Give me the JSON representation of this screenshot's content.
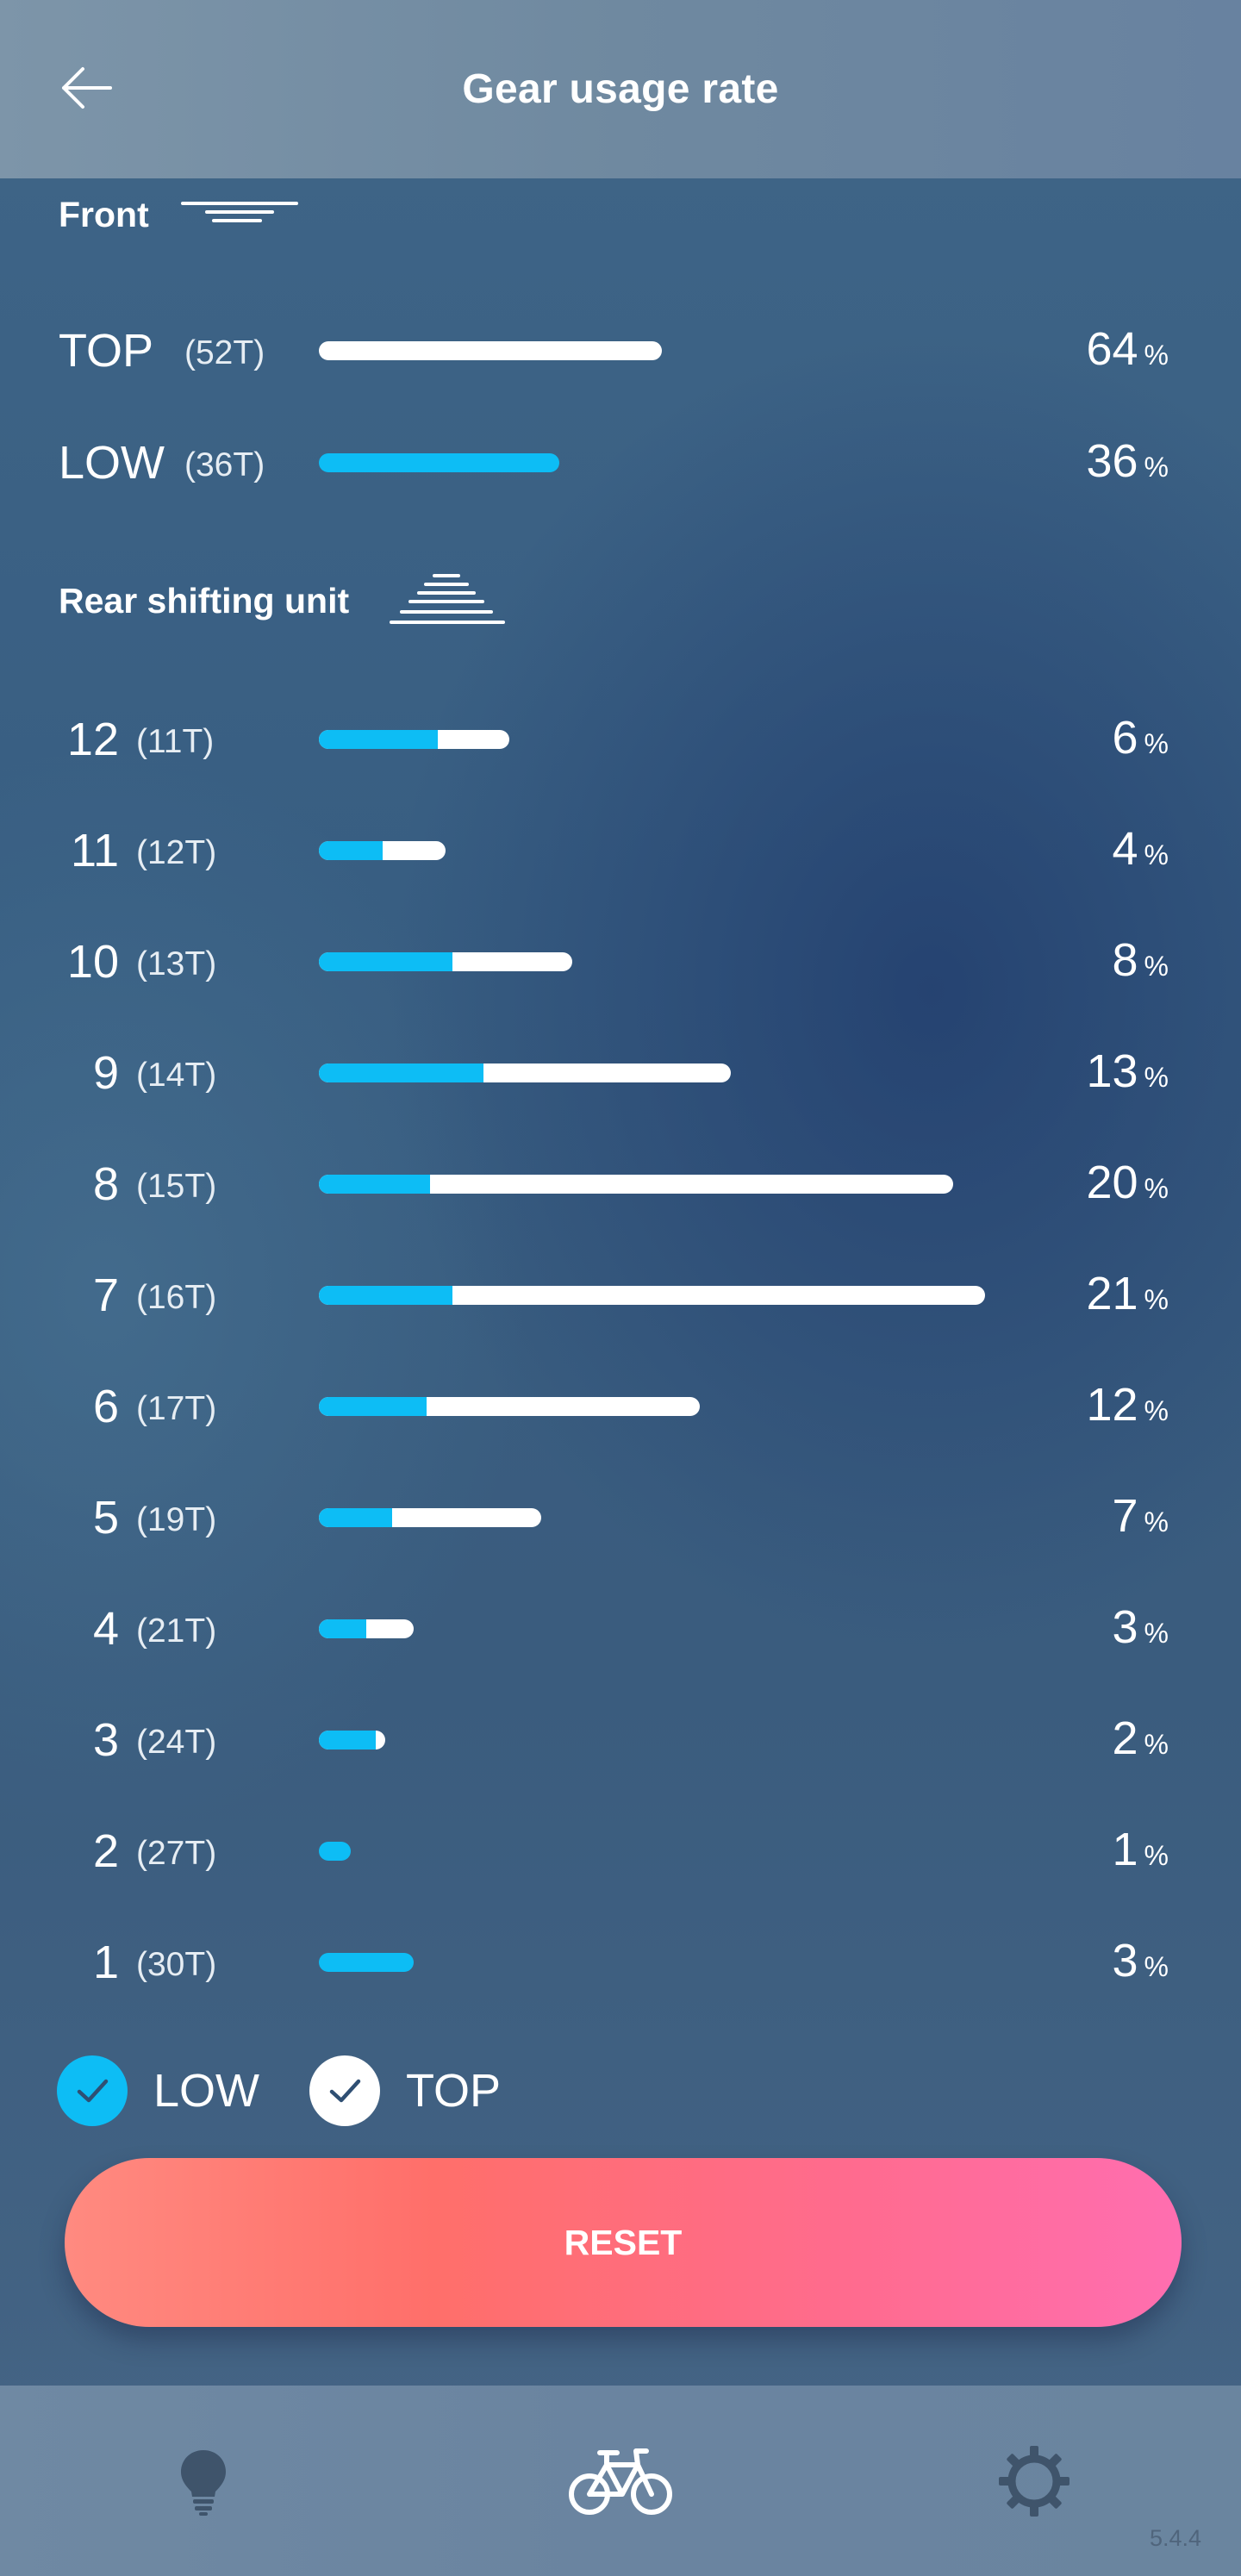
{
  "header": {
    "title": "Gear usage rate",
    "back_icon": "arrow-left-icon"
  },
  "front": {
    "label": "Front",
    "icon": "front-chainring-icon",
    "items": [
      {
        "name": "TOP",
        "teeth": "(52T)",
        "percent": "64",
        "unit": "%",
        "top_fraction": 0.64,
        "low_fraction": 0
      },
      {
        "name": "LOW",
        "teeth": "(36T)",
        "percent": "36",
        "unit": "%",
        "top_fraction": 0,
        "low_fraction": 0.36
      }
    ]
  },
  "rear": {
    "label": "Rear shifting unit",
    "icon": "rear-cassette-icon",
    "items": [
      {
        "gear": "12",
        "teeth": "(11T)",
        "percent": "6",
        "unit": "%",
        "total_fraction": 0.06,
        "low_fraction": 0.0375
      },
      {
        "gear": "11",
        "teeth": "(12T)",
        "percent": "4",
        "unit": "%",
        "total_fraction": 0.04,
        "low_fraction": 0.02
      },
      {
        "gear": "10",
        "teeth": "(13T)",
        "percent": "8",
        "unit": "%",
        "total_fraction": 0.08,
        "low_fraction": 0.042
      },
      {
        "gear": "9",
        "teeth": "(14T)",
        "percent": "13",
        "unit": "%",
        "total_fraction": 0.13,
        "low_fraction": 0.052
      },
      {
        "gear": "8",
        "teeth": "(15T)",
        "percent": "20",
        "unit": "%",
        "total_fraction": 0.2,
        "low_fraction": 0.035
      },
      {
        "gear": "7",
        "teeth": "(16T)",
        "percent": "21",
        "unit": "%",
        "total_fraction": 0.21,
        "low_fraction": 0.042
      },
      {
        "gear": "6",
        "teeth": "(17T)",
        "percent": "12",
        "unit": "%",
        "total_fraction": 0.12,
        "low_fraction": 0.034
      },
      {
        "gear": "5",
        "teeth": "(19T)",
        "percent": "7",
        "unit": "%",
        "total_fraction": 0.07,
        "low_fraction": 0.023
      },
      {
        "gear": "4",
        "teeth": "(21T)",
        "percent": "3",
        "unit": "%",
        "total_fraction": 0.03,
        "low_fraction": 0.015
      },
      {
        "gear": "3",
        "teeth": "(24T)",
        "percent": "2",
        "unit": "%",
        "total_fraction": 0.021,
        "low_fraction": 0.018
      },
      {
        "gear": "2",
        "teeth": "(27T)",
        "percent": "1",
        "unit": "%",
        "total_fraction": 0.01,
        "low_fraction": 0.01
      },
      {
        "gear": "1",
        "teeth": "(30T)",
        "percent": "3",
        "unit": "%",
        "total_fraction": 0.03,
        "low_fraction": 0.03
      }
    ]
  },
  "legend": {
    "low_label": "LOW",
    "top_label": "TOP",
    "low_checked": true,
    "top_checked": true
  },
  "actions": {
    "reset_label": "RESET"
  },
  "bottom_nav": {
    "items": [
      {
        "icon": "lightbulb-icon"
      },
      {
        "icon": "bicycle-icon",
        "active": true
      },
      {
        "icon": "gear-settings-icon"
      }
    ],
    "version": "5.4.4"
  },
  "colors": {
    "low": "#0dbdf5",
    "top": "#ffffff",
    "reset_start": "#ff8a80",
    "reset_end": "#ff6eb0"
  }
}
